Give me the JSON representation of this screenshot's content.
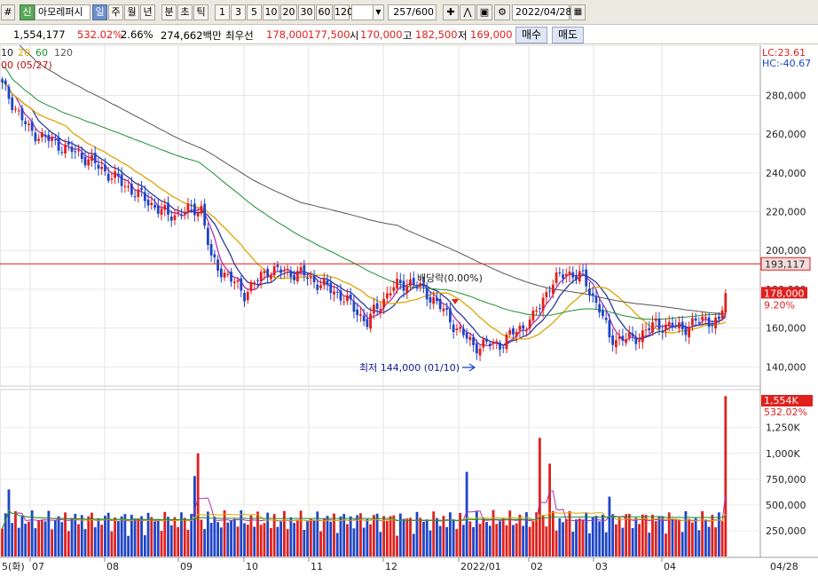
{
  "toolbar": {
    "corner": "#",
    "new_badge": "신",
    "stock_name": "아모레퍼시",
    "periods": [
      "일",
      "주",
      "월",
      "년",
      "분",
      "초",
      "틱"
    ],
    "active_period": "일",
    "intervals": [
      "1",
      "3",
      "5",
      "10",
      "20",
      "30",
      "60",
      "120"
    ],
    "count": "257",
    "count_total": "/600",
    "date": "2022/04/28",
    "icons": [
      "crosshair-icon",
      "zigzag-icon",
      "save-icon",
      "gear-icon",
      "calendar-icon"
    ]
  },
  "quote": {
    "volume": "1,554,177",
    "volume_ratio": "532.02%",
    "turnover": "2.66%",
    "amount": "274,662백만",
    "best_label": "최우선",
    "best_ask": "178,000",
    "best_bid": "177,500",
    "open_label": "시",
    "open": "170,000",
    "high_label": "고",
    "high": "182,500",
    "low_label": "저",
    "low": "169,000",
    "buy_label": "매수",
    "sell_label": "매도"
  },
  "legend": {
    "ma_periods": [
      "10",
      "20",
      "60",
      "120"
    ],
    "ma_colors": [
      "#2a3aa0",
      "#e0a400",
      "#1a9030",
      "#555555"
    ],
    "extra_line": "00 (05/27)"
  },
  "colors": {
    "up": "#e0201c",
    "down": "#1e45c8",
    "ma5": "#b030b0",
    "resistance": "#e0201c"
  },
  "chart_data": {
    "type": "candlestick",
    "x_ticks": [
      "5(화)",
      "07",
      "08",
      "09",
      "10",
      "11",
      "12",
      "2022/01",
      "02",
      "03",
      "04",
      "04/28"
    ],
    "price_axis": {
      "ticks": [
        140000,
        160000,
        180000,
        200000,
        220000,
        240000,
        260000,
        280000
      ],
      "tick_labels": [
        "140,000",
        "160,000",
        "180,000",
        "200,000",
        "220,000",
        "240,000",
        "260,000",
        "280,000"
      ],
      "range": [
        131000,
        304000
      ]
    },
    "volume_axis": {
      "ticks": [
        250000,
        500000,
        750000,
        1000000,
        1250000
      ],
      "tick_labels": [
        "250,000",
        "500,000",
        "750,000",
        "1,000K",
        "1,250K"
      ],
      "range": [
        0,
        1600000
      ]
    },
    "indicators": {
      "lc": "LC:23.61",
      "hc": "HC:-40.67"
    },
    "resistance_line": {
      "value": 193117,
      "label": "193,117"
    },
    "current_price": {
      "value": 178000,
      "label": "178,000",
      "change": "9.20%"
    },
    "current_volume": {
      "label": "1,554K",
      "ratio": "532.02%"
    },
    "annotations": {
      "dividend": "배당락(0.00%)",
      "low": "최저 144,000 (01/10)"
    },
    "key_points": [
      {
        "x": 0,
        "close": 285000
      },
      {
        "x": 8,
        "close": 262000
      },
      {
        "x": 25,
        "close": 248000
      },
      {
        "x": 50,
        "close": 218000
      },
      {
        "x": 60,
        "close": 222000
      },
      {
        "x": 63,
        "close": 195000
      },
      {
        "x": 73,
        "close": 178000
      },
      {
        "x": 80,
        "close": 190000
      },
      {
        "x": 90,
        "close": 188000
      },
      {
        "x": 102,
        "close": 177000
      },
      {
        "x": 110,
        "close": 163000
      },
      {
        "x": 117,
        "close": 180000
      },
      {
        "x": 123,
        "close": 184000
      },
      {
        "x": 130,
        "close": 175000
      },
      {
        "x": 137,
        "close": 160000
      },
      {
        "x": 142,
        "close": 151000
      },
      {
        "x": 150,
        "close": 152000
      },
      {
        "x": 160,
        "close": 165000
      },
      {
        "x": 165,
        "close": 182000
      },
      {
        "x": 170,
        "close": 189000
      },
      {
        "x": 175,
        "close": 186000
      },
      {
        "x": 180,
        "close": 170000
      },
      {
        "x": 183,
        "close": 155000
      },
      {
        "x": 190,
        "close": 154000
      },
      {
        "x": 197,
        "close": 162000
      },
      {
        "x": 205,
        "close": 160000
      },
      {
        "x": 212,
        "close": 165000
      },
      {
        "x": 216,
        "close": 162000
      },
      {
        "x": 218,
        "close": 178000
      }
    ],
    "volume_spikes": [
      {
        "x": 2,
        "volume": 650000
      },
      {
        "x": 58,
        "volume": 780000
      },
      {
        "x": 59,
        "volume": 1000000
      },
      {
        "x": 140,
        "volume": 820000
      },
      {
        "x": 162,
        "volume": 1150000
      },
      {
        "x": 165,
        "volume": 900000
      },
      {
        "x": 183,
        "volume": 580000
      },
      {
        "x": 218,
        "volume": 1554177
      }
    ]
  }
}
